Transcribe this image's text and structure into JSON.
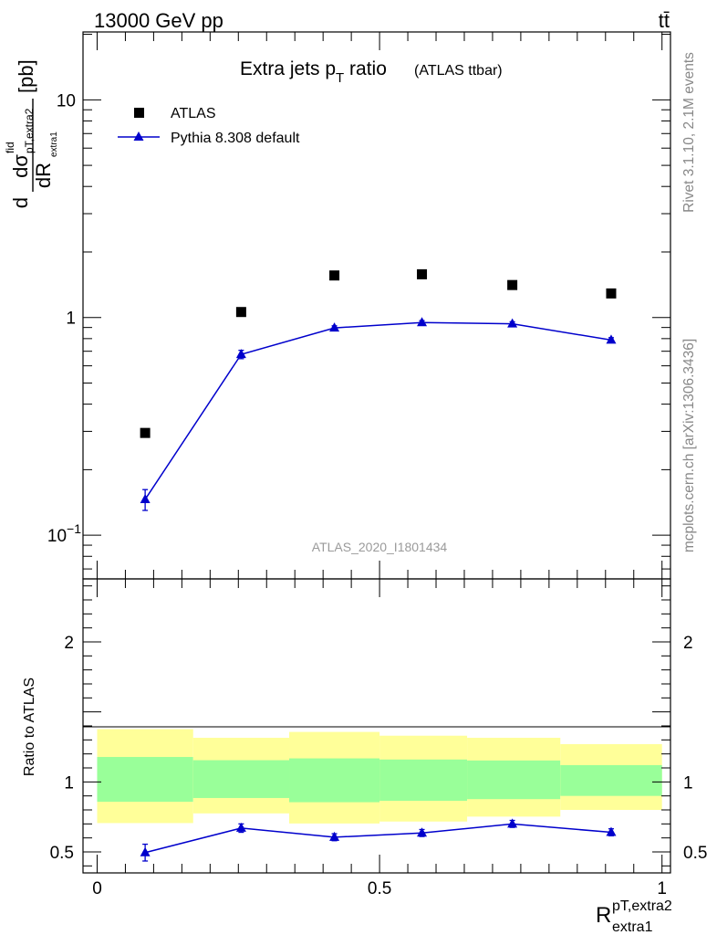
{
  "header": {
    "left": "13000 GeV pp",
    "right": "tt̄"
  },
  "side_labels": {
    "rivet": "Rivet 3.1.10,  2.1M events",
    "mcplots": "mcplots.cern.ch [arXiv:1306.3436]"
  },
  "chart_data": [
    {
      "type": "scatter",
      "panel": "main",
      "title": "Extra jets pT ratio",
      "title_main": "Extra jets p",
      "title_sub": "T",
      "title_tail": " ratio",
      "title_suffix": "(ATLAS ttbar)",
      "watermark": "ATLAS_2020_I1801434",
      "ylabel": "dσ^fid_{pT,extra2} / dR_extra1 [pb]",
      "ylabel_parts": {
        "d": "d",
        "sigma": "dσ",
        "sup": "fid",
        "sub": "pT,extra2",
        "den": "dR",
        "den_sub": "extra1",
        "unit": "[pb]"
      },
      "yscale": "log",
      "xlim": [
        -0.025,
        1.015
      ],
      "ylim": [
        0.063,
        20.5
      ],
      "y_ticks": [
        {
          "value": 0.1,
          "label_base": "10",
          "label_exp": "−1"
        },
        {
          "value": 1,
          "label_base": "1",
          "label_exp": ""
        },
        {
          "value": 10,
          "label_base": "10",
          "label_exp": ""
        }
      ],
      "legend_position": "top-left",
      "series": [
        {
          "name": "ATLAS",
          "marker": "square",
          "color": "#000000",
          "x": [
            0.085,
            0.255,
            0.42,
            0.575,
            0.735,
            0.91
          ],
          "y": [
            0.295,
            1.06,
            1.56,
            1.58,
            1.41,
            1.29
          ]
        },
        {
          "name": "Pythia 8.308 default",
          "marker": "triangle",
          "color": "#0000cc",
          "x": [
            0.085,
            0.255,
            0.42,
            0.575,
            0.735,
            0.91
          ],
          "y": [
            0.146,
            0.677,
            0.896,
            0.948,
            0.936,
            0.788
          ],
          "err": [
            0.016,
            0.03,
            0.02,
            0.02,
            0.02,
            0.02
          ]
        }
      ]
    },
    {
      "type": "scatter",
      "panel": "ratio",
      "ylabel": "Ratio to ATLAS",
      "xlabel": "R",
      "xlabel_sup": "pT,extra2",
      "xlabel_sub": "extra1",
      "xlim": [
        -0.025,
        1.015
      ],
      "ylim": [
        0.35,
        2.45
      ],
      "x_ticks": [
        {
          "value": 0,
          "label": "0"
        },
        {
          "value": 0.5,
          "label": "0.5"
        },
        {
          "value": 1,
          "label": "1"
        }
      ],
      "y_ticks": [
        {
          "value": 0.5,
          "label": "0.5"
        },
        {
          "value": 1,
          "label": "1"
        },
        {
          "value": 2,
          "label": "2"
        }
      ],
      "bands": [
        {
          "x0": 0.0,
          "x1": 0.17,
          "yellow": [
            0.706,
            1.377
          ],
          "green": [
            0.858,
            1.178
          ]
        },
        {
          "x0": 0.17,
          "x1": 0.34,
          "yellow": [
            0.775,
            1.315
          ],
          "green": [
            0.885,
            1.155
          ]
        },
        {
          "x0": 0.34,
          "x1": 0.5,
          "yellow": [
            0.703,
            1.357
          ],
          "green": [
            0.855,
            1.168
          ]
        },
        {
          "x0": 0.5,
          "x1": 0.655,
          "yellow": [
            0.717,
            1.33
          ],
          "green": [
            0.865,
            1.16
          ]
        },
        {
          "x0": 0.655,
          "x1": 0.82,
          "yellow": [
            0.752,
            1.315
          ],
          "green": [
            0.877,
            1.153
          ]
        },
        {
          "x0": 0.82,
          "x1": 1.0,
          "yellow": [
            0.8,
            1.27
          ],
          "green": [
            0.9,
            1.12
          ]
        }
      ],
      "series": [
        {
          "name": "Pythia 8.308 default",
          "marker": "triangle",
          "color": "#0000cc",
          "x": [
            0.085,
            0.255,
            0.42,
            0.575,
            0.735,
            0.91
          ],
          "y": [
            0.495,
            0.67,
            0.605,
            0.635,
            0.7,
            0.64
          ],
          "err": [
            0.06,
            0.03,
            0.025,
            0.025,
            0.025,
            0.025
          ]
        }
      ]
    }
  ]
}
